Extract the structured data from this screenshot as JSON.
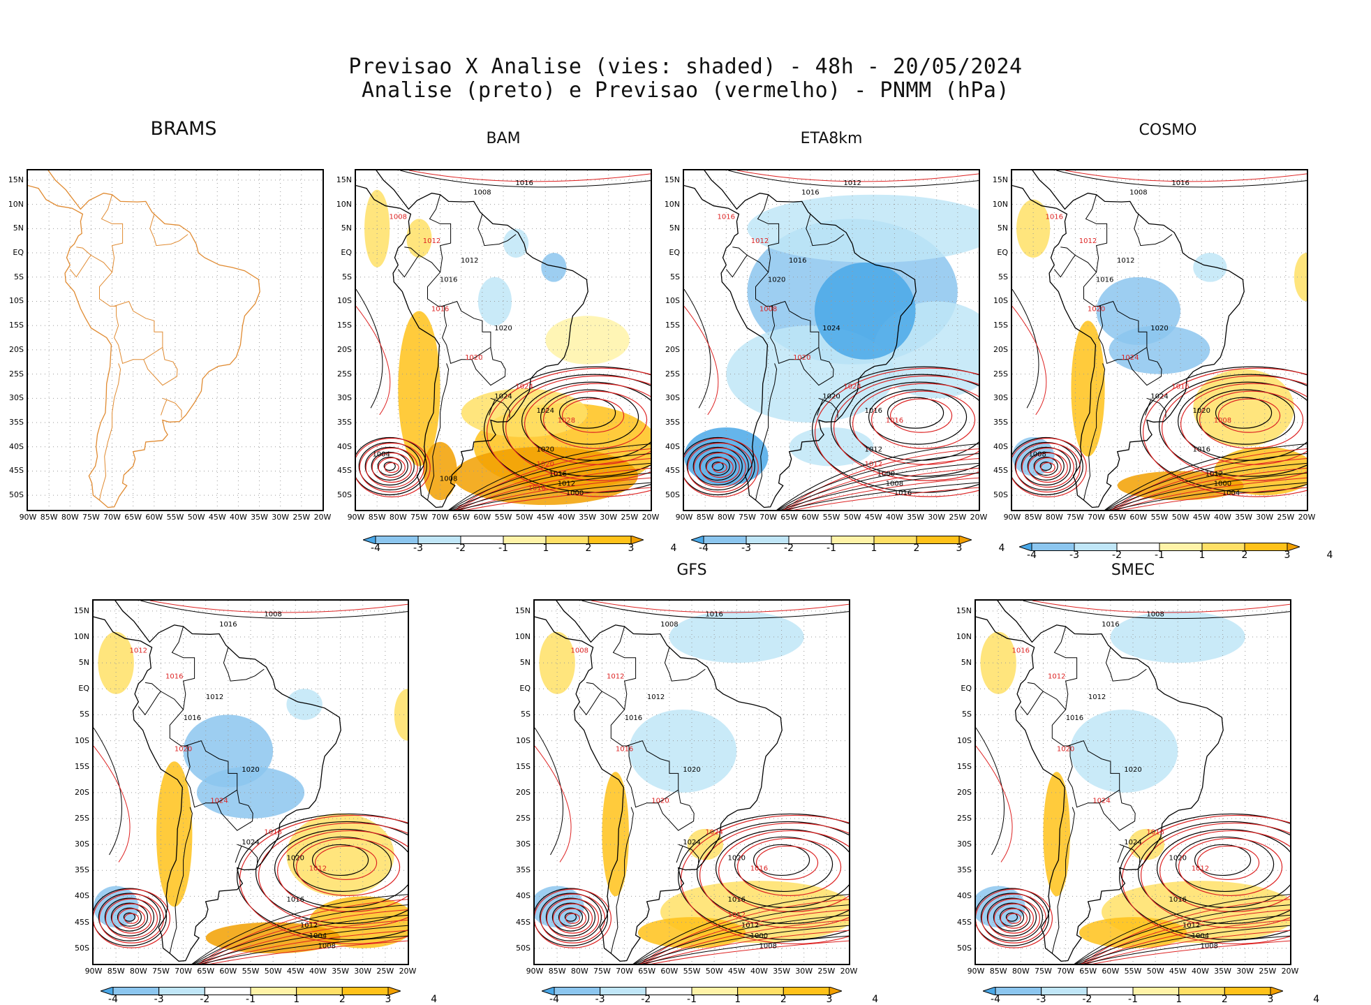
{
  "header": {
    "line1": "Previsao X Analise (vies: shaded) - 48h - 20/05/2024",
    "line2": "Analise (preto) e Previsao (vermelho) - PNMM (hPa)"
  },
  "lat_labels": [
    "15N",
    "10N",
    "5N",
    "EQ",
    "5S",
    "10S",
    "15S",
    "20S",
    "25S",
    "30S",
    "35S",
    "40S",
    "45S",
    "50S"
  ],
  "lon_labels": [
    "90W",
    "85W",
    "80W",
    "75W",
    "70W",
    "65W",
    "60W",
    "55W",
    "50W",
    "45W",
    "40W",
    "35W",
    "30W",
    "25W",
    "20W"
  ],
  "colorbar": {
    "labels": [
      "-4",
      "-3",
      "-2",
      "-1",
      "1",
      "2",
      "3",
      "4"
    ],
    "colors": [
      "#4aa8e8",
      "#8cc6ef",
      "#c0e6f7",
      "#ffffff",
      "#fff3a8",
      "#ffe066",
      "#ffc21a",
      "#f2a000"
    ]
  },
  "contour_colors": {
    "analysis": "#000000",
    "forecast": "#dd2222",
    "coastline": "#e08a30"
  },
  "panels": [
    {
      "name": "BRAMS",
      "title": "BRAMS",
      "has_bias": false,
      "style": "brams",
      "labels_black": [],
      "labels_red": []
    },
    {
      "name": "BAM",
      "title": "BAM",
      "has_bias": true,
      "style": "warm",
      "labels_black": [
        "1008",
        "1016",
        "1012",
        "1016",
        "1020",
        "1024",
        "1024",
        "1020",
        "1016",
        "1012",
        "1000",
        "1004",
        "1008"
      ],
      "labels_red": [
        "1008",
        "1012",
        "1016",
        "1020",
        "1024",
        "1028",
        "1020",
        "1016"
      ]
    },
    {
      "name": "ETA8km",
      "title": "ETA8km",
      "has_bias": true,
      "style": "cool",
      "labels_black": [
        "1016",
        "1012",
        "1016",
        "1020",
        "1024",
        "1020",
        "1016",
        "1012",
        "1000",
        "1008",
        "1016"
      ],
      "labels_red": [
        "1016",
        "1012",
        "1008",
        "1020",
        "1024",
        "1016",
        "1012"
      ]
    },
    {
      "name": "COSMO",
      "title": "COSMO",
      "has_bias": true,
      "style": "mixed",
      "labels_black": [
        "1008",
        "1016",
        "1012",
        "1016",
        "1020",
        "1024",
        "1020",
        "1016",
        "1012",
        "1000",
        "1004",
        "1008"
      ],
      "labels_red": [
        "1016",
        "1012",
        "1020",
        "1024",
        "1016",
        "1008"
      ]
    },
    {
      "name": "ICON",
      "title": "",
      "has_bias": true,
      "style": "mixed",
      "labels_black": [
        "1016",
        "1008",
        "1012",
        "1016",
        "1020",
        "1024",
        "1020",
        "1016",
        "1012",
        "1004",
        "1008"
      ],
      "labels_red": [
        "1012",
        "1016",
        "1020",
        "1024",
        "1016",
        "1012"
      ]
    },
    {
      "name": "GFS",
      "title": "GFS",
      "has_bias": true,
      "style": "light",
      "labels_black": [
        "1008",
        "1016",
        "1012",
        "1016",
        "1020",
        "1024",
        "1020",
        "1016",
        "1012",
        "1000",
        "1008"
      ],
      "labels_red": [
        "1008",
        "1012",
        "1016",
        "1020",
        "1024",
        "1016",
        "1012"
      ]
    },
    {
      "name": "SMEC",
      "title": "SMEC",
      "has_bias": true,
      "style": "light",
      "labels_black": [
        "1016",
        "1008",
        "1012",
        "1016",
        "1020",
        "1024",
        "1020",
        "1016",
        "1012",
        "1004",
        "1008"
      ],
      "labels_red": [
        "1016",
        "1012",
        "1020",
        "1024",
        "1016",
        "1012"
      ]
    }
  ]
}
